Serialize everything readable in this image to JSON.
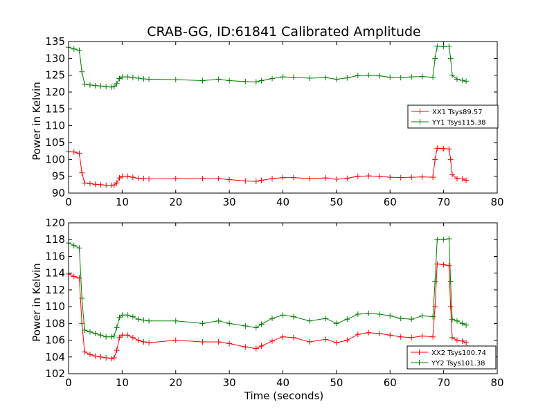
{
  "figure": {
    "title": "CRAB-GG, ID:61841 Calibrated Amplitude",
    "xlabel": "Time (seconds)"
  },
  "chart_data": [
    {
      "type": "line",
      "title": "CRAB-GG, ID:61841 Calibrated Amplitude",
      "xlabel": "",
      "ylabel": "Power in Kelvin",
      "xlim": [
        0,
        80
      ],
      "ylim": [
        90,
        135
      ],
      "xticks": [
        0,
        10,
        20,
        30,
        40,
        50,
        60,
        70,
        80
      ],
      "yticks": [
        90,
        95,
        100,
        105,
        110,
        115,
        120,
        125,
        130,
        135
      ],
      "grid": false,
      "legend": "center-right",
      "marker": "+",
      "series": [
        {
          "name": "XX1 Tsys89.57",
          "color": "#ff0000",
          "x": [
            0,
            1,
            2,
            2.5,
            3,
            4,
            5,
            6,
            7,
            8,
            8.5,
            9,
            9.5,
            10,
            11,
            12,
            13,
            14,
            15,
            20,
            25,
            28,
            30,
            33,
            35,
            36,
            38,
            40,
            42,
            45,
            48,
            50,
            52,
            54,
            56,
            58,
            60,
            62,
            64,
            66,
            68,
            68.4,
            68.8,
            70,
            71,
            71.3,
            71.6,
            72.5,
            73.5,
            74.2
          ],
          "y": [
            102.3,
            102.2,
            101.8,
            96.0,
            93.0,
            92.8,
            92.6,
            92.5,
            92.3,
            92.3,
            92.4,
            93.0,
            94.5,
            95.0,
            95.0,
            94.7,
            94.4,
            94.3,
            94.2,
            94.3,
            94.3,
            94.3,
            94.0,
            93.6,
            93.5,
            93.8,
            94.3,
            94.6,
            94.6,
            94.3,
            94.5,
            94.1,
            94.4,
            95.0,
            95.1,
            95.0,
            94.7,
            94.6,
            94.7,
            94.8,
            94.7,
            100.0,
            103.3,
            103.2,
            103.1,
            100.0,
            95.5,
            94.3,
            94.2,
            93.8
          ]
        },
        {
          "name": "YY1 Tsys115.38",
          "color": "#008000",
          "x": [
            0,
            1,
            2,
            2.5,
            3,
            4,
            5,
            6,
            7,
            8,
            8.5,
            9,
            9.5,
            10,
            11,
            12,
            13,
            14,
            15,
            20,
            25,
            28,
            30,
            33,
            35,
            36,
            38,
            40,
            42,
            45,
            48,
            50,
            52,
            54,
            56,
            58,
            60,
            62,
            64,
            66,
            68,
            68.4,
            68.8,
            70,
            71,
            71.3,
            71.6,
            72.5,
            73.5,
            74.2
          ],
          "y": [
            133.3,
            132.8,
            132.4,
            126.0,
            122.3,
            122.1,
            121.9,
            121.8,
            121.6,
            121.5,
            121.6,
            122.5,
            124.0,
            124.5,
            124.5,
            124.3,
            124.1,
            123.9,
            123.8,
            123.7,
            123.4,
            123.8,
            123.4,
            123.1,
            123.0,
            123.4,
            124.0,
            124.5,
            124.4,
            124.1,
            124.3,
            123.8,
            124.2,
            124.9,
            125.0,
            124.8,
            124.4,
            124.3,
            124.5,
            124.6,
            124.4,
            130.0,
            133.6,
            133.5,
            133.6,
            130.0,
            125.0,
            123.8,
            123.5,
            123.2
          ]
        }
      ]
    },
    {
      "type": "line",
      "title": "",
      "xlabel": "Time (seconds)",
      "ylabel": "Power in Kelvin",
      "xlim": [
        0,
        80
      ],
      "ylim": [
        102,
        120
      ],
      "xticks": [
        0,
        10,
        20,
        30,
        40,
        50,
        60,
        70,
        80
      ],
      "yticks": [
        102,
        104,
        106,
        108,
        110,
        112,
        114,
        116,
        118,
        120
      ],
      "grid": false,
      "legend": "bottom-right",
      "marker": "+",
      "series": [
        {
          "name": "XX2 Tsys100.74",
          "color": "#ff0000",
          "x": [
            0,
            1,
            2,
            2.5,
            3,
            4,
            5,
            6,
            7,
            8,
            8.5,
            9,
            9.5,
            10,
            11,
            12,
            13,
            14,
            15,
            20,
            25,
            28,
            30,
            33,
            35,
            36,
            38,
            40,
            42,
            45,
            48,
            50,
            52,
            54,
            56,
            58,
            60,
            62,
            64,
            66,
            68,
            68.4,
            68.8,
            70,
            71,
            71.3,
            71.6,
            72.5,
            73.5,
            74.2
          ],
          "y": [
            113.9,
            113.6,
            113.4,
            108.0,
            104.6,
            104.3,
            104.1,
            104.0,
            103.9,
            103.8,
            103.9,
            104.8,
            106.3,
            106.6,
            106.6,
            106.3,
            106.0,
            105.8,
            105.7,
            106.0,
            105.8,
            105.8,
            105.6,
            105.2,
            105.0,
            105.3,
            105.9,
            106.4,
            106.3,
            105.8,
            106.1,
            105.7,
            106.0,
            106.7,
            106.9,
            106.8,
            106.6,
            106.4,
            106.3,
            106.5,
            106.4,
            110.0,
            115.1,
            115.0,
            114.9,
            110.0,
            106.3,
            106.0,
            105.9,
            105.7
          ]
        },
        {
          "name": "YY2 Tsys101.38",
          "color": "#008000",
          "x": [
            0,
            1,
            2,
            2.5,
            3,
            4,
            5,
            6,
            7,
            8,
            8.5,
            9,
            9.5,
            10,
            11,
            12,
            13,
            14,
            15,
            20,
            25,
            28,
            30,
            33,
            35,
            36,
            38,
            40,
            42,
            45,
            48,
            50,
            52,
            54,
            56,
            58,
            60,
            62,
            64,
            66,
            68,
            68.4,
            68.8,
            70,
            71,
            71.3,
            71.6,
            72.5,
            73.5,
            74.2
          ],
          "y": [
            117.6,
            117.3,
            117.0,
            111.0,
            107.2,
            107.0,
            106.8,
            106.6,
            106.4,
            106.4,
            106.5,
            107.5,
            108.7,
            109.0,
            109.0,
            108.8,
            108.5,
            108.4,
            108.3,
            108.3,
            108.0,
            108.3,
            108.0,
            107.7,
            107.5,
            107.9,
            108.6,
            109.0,
            108.8,
            108.3,
            108.6,
            108.0,
            108.5,
            109.1,
            109.2,
            109.1,
            108.9,
            108.6,
            108.5,
            108.9,
            108.8,
            113.0,
            118.0,
            118.0,
            118.1,
            113.0,
            108.5,
            108.3,
            108.0,
            107.8
          ]
        }
      ]
    }
  ]
}
